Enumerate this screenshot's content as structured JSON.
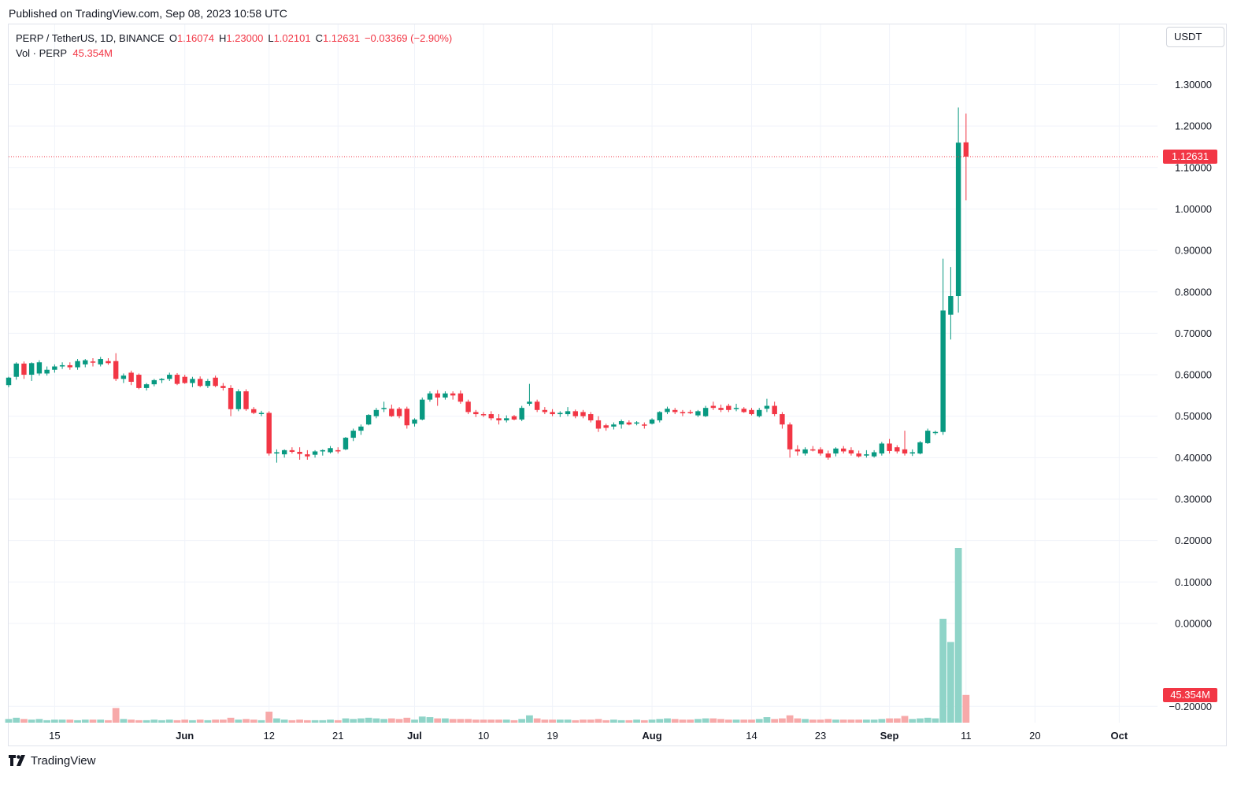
{
  "header": {
    "published": "Published on TradingView.com, Sep 08, 2023 10:58 UTC"
  },
  "legend": {
    "symbol": "PERP / TetherUS, 1D, BINANCE",
    "o_label": "O",
    "o_value": "1.16074",
    "h_label": "H",
    "h_value": "1.23000",
    "l_label": "L",
    "l_value": "1.02101",
    "c_label": "C",
    "c_value": "1.12631",
    "change": "−0.03369 (−2.90%)",
    "volume_label": "Vol · PERP",
    "volume_value": "45.354M"
  },
  "currency_button": "USDT",
  "last_price_tag": "1.12631",
  "last_volume_tag": "45.354M",
  "footer": {
    "brand": "TradingView"
  },
  "colors": {
    "up": "#089981",
    "down": "#f23645",
    "up_volume": "#8fd4c8",
    "down_volume": "#f7a9a9",
    "grid": "#f0f3fa"
  },
  "chart_data": {
    "type": "candlestick",
    "symbol": "PERP / TetherUS",
    "interval": "1D",
    "exchange": "BINANCE",
    "x_ticks": [
      "15",
      "Jun",
      "12",
      "21",
      "Jul",
      "10",
      "19",
      "Aug",
      "14",
      "23",
      "Sep",
      "11",
      "20",
      "Oct"
    ],
    "y_ticks": [
      "1.30000",
      "1.20000",
      "1.10000",
      "1.00000",
      "0.90000",
      "0.80000",
      "0.70000",
      "0.60000",
      "0.50000",
      "0.40000",
      "0.30000",
      "0.20000",
      "0.10000",
      "0.00000",
      "−0.20000"
    ],
    "ylim": [
      -0.24,
      1.42
    ],
    "x_range": [
      "2023-05-09",
      "2023-10-06"
    ],
    "first_date": "2023-05-09",
    "ohlc": [
      [
        0.575,
        0.595,
        0.57,
        0.593
      ],
      [
        0.595,
        0.63,
        0.588,
        0.627
      ],
      [
        0.627,
        0.632,
        0.59,
        0.6
      ],
      [
        0.6,
        0.63,
        0.585,
        0.628
      ],
      [
        0.603,
        0.635,
        0.598,
        0.63
      ],
      [
        0.603,
        0.62,
        0.598,
        0.612
      ],
      [
        0.612,
        0.625,
        0.605,
        0.62
      ],
      [
        0.62,
        0.63,
        0.614,
        0.623
      ],
      [
        0.623,
        0.63,
        0.612,
        0.618
      ],
      [
        0.618,
        0.638,
        0.612,
        0.633
      ],
      [
        0.625,
        0.638,
        0.618,
        0.635
      ],
      [
        0.632,
        0.64,
        0.62,
        0.63
      ],
      [
        0.625,
        0.643,
        0.62,
        0.638
      ],
      [
        0.633,
        0.64,
        0.624,
        0.628
      ],
      [
        0.633,
        0.652,
        0.585,
        0.59
      ],
      [
        0.59,
        0.603,
        0.58,
        0.598
      ],
      [
        0.605,
        0.61,
        0.575,
        0.583
      ],
      [
        0.6,
        0.603,
        0.565,
        0.568
      ],
      [
        0.568,
        0.58,
        0.562,
        0.577
      ],
      [
        0.577,
        0.59,
        0.572,
        0.587
      ],
      [
        0.587,
        0.592,
        0.58,
        0.59
      ],
      [
        0.59,
        0.605,
        0.585,
        0.6
      ],
      [
        0.6,
        0.604,
        0.575,
        0.578
      ],
      [
        0.595,
        0.6,
        0.578,
        0.58
      ],
      [
        0.58,
        0.595,
        0.57,
        0.59
      ],
      [
        0.59,
        0.596,
        0.57,
        0.573
      ],
      [
        0.573,
        0.59,
        0.568,
        0.585
      ],
      [
        0.593,
        0.598,
        0.57,
        0.573
      ],
      [
        0.573,
        0.58,
        0.562,
        0.568
      ],
      [
        0.568,
        0.575,
        0.5,
        0.517
      ],
      [
        0.517,
        0.565,
        0.512,
        0.56
      ],
      [
        0.56,
        0.565,
        0.513,
        0.517
      ],
      [
        0.517,
        0.522,
        0.505,
        0.508
      ],
      [
        0.508,
        0.513,
        0.5,
        0.508
      ],
      [
        0.508,
        0.512,
        0.405,
        0.41
      ],
      [
        0.41,
        0.42,
        0.388,
        0.413
      ],
      [
        0.408,
        0.42,
        0.4,
        0.418
      ],
      [
        0.418,
        0.425,
        0.41,
        0.414
      ],
      [
        0.414,
        0.425,
        0.395,
        0.409
      ],
      [
        0.408,
        0.418,
        0.395,
        0.403
      ],
      [
        0.407,
        0.418,
        0.4,
        0.415
      ],
      [
        0.415,
        0.42,
        0.405,
        0.418
      ],
      [
        0.413,
        0.428,
        0.41,
        0.423
      ],
      [
        0.418,
        0.425,
        0.41,
        0.415
      ],
      [
        0.42,
        0.45,
        0.418,
        0.448
      ],
      [
        0.448,
        0.47,
        0.44,
        0.465
      ],
      [
        0.465,
        0.48,
        0.455,
        0.475
      ],
      [
        0.48,
        0.505,
        0.478,
        0.503
      ],
      [
        0.5,
        0.52,
        0.495,
        0.515
      ],
      [
        0.518,
        0.535,
        0.51,
        0.52
      ],
      [
        0.518,
        0.528,
        0.498,
        0.5
      ],
      [
        0.518,
        0.522,
        0.495,
        0.5
      ],
      [
        0.518,
        0.523,
        0.47,
        0.478
      ],
      [
        0.482,
        0.495,
        0.475,
        0.492
      ],
      [
        0.492,
        0.545,
        0.49,
        0.54
      ],
      [
        0.54,
        0.56,
        0.535,
        0.555
      ],
      [
        0.555,
        0.563,
        0.525,
        0.545
      ],
      [
        0.545,
        0.56,
        0.54,
        0.555
      ],
      [
        0.555,
        0.56,
        0.54,
        0.55
      ],
      [
        0.555,
        0.562,
        0.53,
        0.535
      ],
      [
        0.535,
        0.54,
        0.505,
        0.51
      ],
      [
        0.51,
        0.515,
        0.498,
        0.505
      ],
      [
        0.505,
        0.51,
        0.498,
        0.503
      ],
      [
        0.505,
        0.512,
        0.49,
        0.495
      ],
      [
        0.495,
        0.505,
        0.48,
        0.49
      ],
      [
        0.49,
        0.502,
        0.485,
        0.495
      ],
      [
        0.5,
        0.503,
        0.49,
        0.492
      ],
      [
        0.492,
        0.525,
        0.488,
        0.52
      ],
      [
        0.53,
        0.578,
        0.525,
        0.535
      ],
      [
        0.535,
        0.54,
        0.51,
        0.515
      ],
      [
        0.515,
        0.522,
        0.505,
        0.51
      ],
      [
        0.51,
        0.517,
        0.5,
        0.505
      ],
      [
        0.505,
        0.512,
        0.498,
        0.508
      ],
      [
        0.505,
        0.522,
        0.5,
        0.512
      ],
      [
        0.512,
        0.516,
        0.495,
        0.5
      ],
      [
        0.51,
        0.515,
        0.495,
        0.5
      ],
      [
        0.505,
        0.51,
        0.485,
        0.49
      ],
      [
        0.49,
        0.5,
        0.462,
        0.47
      ],
      [
        0.478,
        0.482,
        0.465,
        0.472
      ],
      [
        0.475,
        0.485,
        0.468,
        0.48
      ],
      [
        0.48,
        0.492,
        0.47,
        0.488
      ],
      [
        0.485,
        0.49,
        0.478,
        0.48
      ],
      [
        0.483,
        0.488,
        0.478,
        0.485
      ],
      [
        0.48,
        0.485,
        0.47,
        0.478
      ],
      [
        0.482,
        0.495,
        0.48,
        0.492
      ],
      [
        0.49,
        0.512,
        0.485,
        0.51
      ],
      [
        0.51,
        0.523,
        0.505,
        0.518
      ],
      [
        0.515,
        0.52,
        0.505,
        0.51
      ],
      [
        0.51,
        0.515,
        0.5,
        0.507
      ],
      [
        0.51,
        0.515,
        0.505,
        0.508
      ],
      [
        0.502,
        0.515,
        0.498,
        0.512
      ],
      [
        0.5,
        0.525,
        0.498,
        0.52
      ],
      [
        0.525,
        0.535,
        0.515,
        0.52
      ],
      [
        0.52,
        0.528,
        0.51,
        0.515
      ],
      [
        0.525,
        0.53,
        0.51,
        0.515
      ],
      [
        0.518,
        0.53,
        0.512,
        0.52
      ],
      [
        0.518,
        0.522,
        0.508,
        0.51
      ],
      [
        0.515,
        0.52,
        0.502,
        0.505
      ],
      [
        0.5,
        0.52,
        0.497,
        0.515
      ],
      [
        0.518,
        0.542,
        0.51,
        0.525
      ],
      [
        0.525,
        0.535,
        0.5,
        0.505
      ],
      [
        0.505,
        0.51,
        0.47,
        0.48
      ],
      [
        0.48,
        0.485,
        0.4,
        0.42
      ],
      [
        0.42,
        0.43,
        0.405,
        0.415
      ],
      [
        0.41,
        0.425,
        0.405,
        0.42
      ],
      [
        0.42,
        0.428,
        0.415,
        0.418
      ],
      [
        0.42,
        0.425,
        0.405,
        0.41
      ],
      [
        0.41,
        0.417,
        0.395,
        0.4
      ],
      [
        0.41,
        0.425,
        0.403,
        0.422
      ],
      [
        0.422,
        0.428,
        0.41,
        0.415
      ],
      [
        0.418,
        0.425,
        0.405,
        0.41
      ],
      [
        0.41,
        0.417,
        0.4,
        0.403
      ],
      [
        0.405,
        0.418,
        0.4,
        0.408
      ],
      [
        0.403,
        0.418,
        0.4,
        0.413
      ],
      [
        0.41,
        0.438,
        0.405,
        0.434
      ],
      [
        0.434,
        0.445,
        0.41,
        0.416
      ],
      [
        0.425,
        0.43,
        0.41,
        0.415
      ],
      [
        0.42,
        0.465,
        0.405,
        0.41
      ],
      [
        0.41,
        0.42,
        0.404,
        0.413
      ],
      [
        0.41,
        0.44,
        0.408,
        0.437
      ],
      [
        0.435,
        0.47,
        0.433,
        0.465
      ],
      [
        0.46,
        0.465,
        0.455,
        0.462
      ],
      [
        0.462,
        0.88,
        0.455,
        0.755
      ],
      [
        0.745,
        0.86,
        0.685,
        0.79
      ],
      [
        0.79,
        1.245,
        0.75,
        1.16
      ],
      [
        1.16074,
        1.23,
        1.02101,
        1.12631
      ]
    ],
    "volume_M": [
      6,
      8,
      6,
      5,
      6,
      4,
      5,
      5,
      5,
      4,
      5,
      5,
      5,
      4,
      24,
      6,
      5,
      4,
      4,
      5,
      4,
      5,
      4,
      5,
      4,
      5,
      4,
      5,
      5,
      8,
      5,
      6,
      5,
      4,
      18,
      7,
      5,
      4,
      5,
      4,
      4,
      4,
      5,
      4,
      7,
      6,
      7,
      8,
      7,
      6,
      7,
      6,
      8,
      5,
      10,
      9,
      7,
      7,
      6,
      6,
      6,
      5,
      5,
      5,
      5,
      5,
      4,
      6,
      12,
      7,
      5,
      5,
      5,
      5,
      4,
      5,
      5,
      6,
      4,
      5,
      4,
      4,
      5,
      4,
      5,
      6,
      7,
      6,
      5,
      5,
      6,
      7,
      7,
      6,
      5,
      5,
      5,
      5,
      6,
      9,
      6,
      7,
      12,
      7,
      6,
      5,
      5,
      6,
      5,
      5,
      5,
      5,
      5,
      5,
      6,
      7,
      7,
      11,
      6,
      7,
      8,
      7,
      170,
      132,
      286,
      45.354
    ]
  }
}
